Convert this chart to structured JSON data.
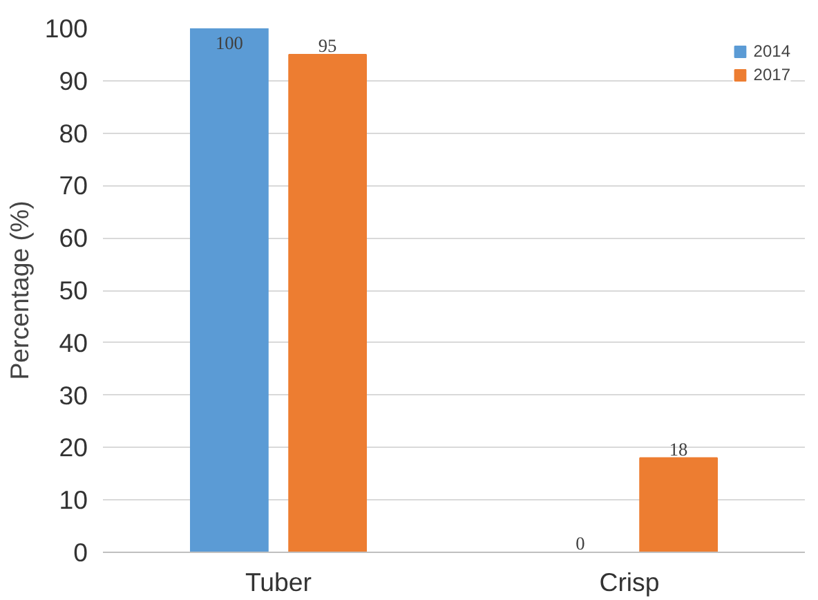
{
  "chart_data": {
    "type": "bar",
    "ylabel": "Percentage (%)",
    "categories": [
      "Tuber",
      "Crisp"
    ],
    "series": [
      {
        "name": "2014",
        "color": "#5b9bd5",
        "values": [
          100,
          0
        ]
      },
      {
        "name": "2017",
        "color": "#ed7d31",
        "values": [
          95,
          18
        ]
      }
    ],
    "ylim": [
      0,
      100
    ],
    "yticks": [
      0,
      10,
      20,
      30,
      40,
      50,
      60,
      70,
      80,
      90,
      100
    ],
    "grid": "y",
    "legend": "top right",
    "data_labels": true
  }
}
